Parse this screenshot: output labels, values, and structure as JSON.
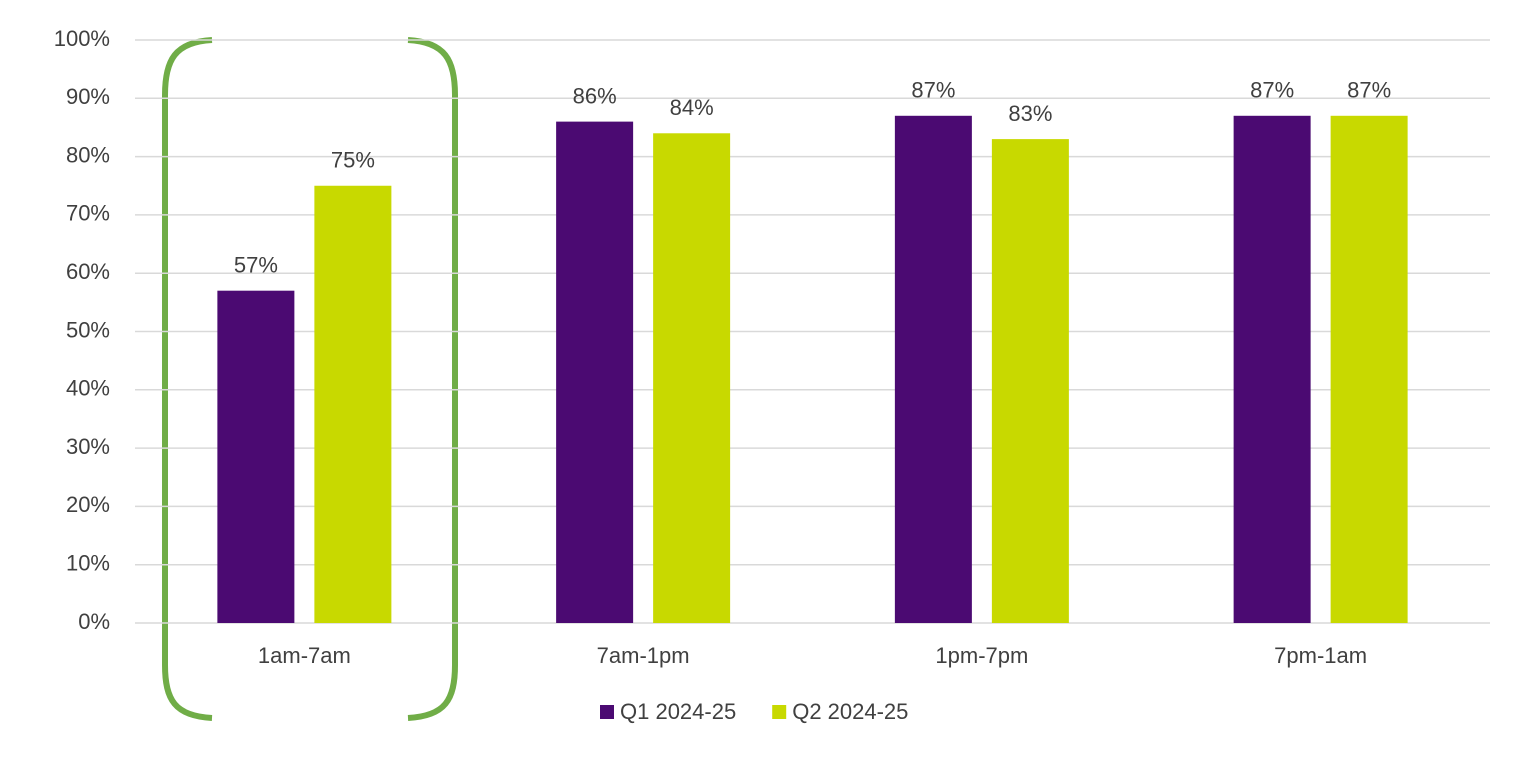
{
  "chart_data": {
    "type": "bar",
    "categories": [
      "1am-7am",
      "7am-1pm",
      "1pm-7pm",
      "7pm-1am"
    ],
    "series": [
      {
        "name": "Q1 2024-25",
        "color": "#4b0a72",
        "values": [
          57,
          86,
          87,
          87
        ],
        "value_labels": [
          "57%",
          "86%",
          "87%",
          "87%"
        ]
      },
      {
        "name": "Q2 2024-25",
        "color": "#c8d900",
        "values": [
          75,
          84,
          83,
          87
        ],
        "value_labels": [
          "75%",
          "84%",
          "83%",
          "87%"
        ]
      }
    ],
    "ylim": [
      0,
      100
    ],
    "yticks": [
      {
        "value": 0,
        "label": "0%"
      },
      {
        "value": 10,
        "label": "10%"
      },
      {
        "value": 20,
        "label": "20%"
      },
      {
        "value": 30,
        "label": "30%"
      },
      {
        "value": 40,
        "label": "40%"
      },
      {
        "value": 50,
        "label": "50%"
      },
      {
        "value": 60,
        "label": "60%"
      },
      {
        "value": 70,
        "label": "70%"
      },
      {
        "value": 80,
        "label": "80%"
      },
      {
        "value": 90,
        "label": "90%"
      },
      {
        "value": 100,
        "label": "100%"
      }
    ],
    "grid": true,
    "legend": "bottom"
  }
}
